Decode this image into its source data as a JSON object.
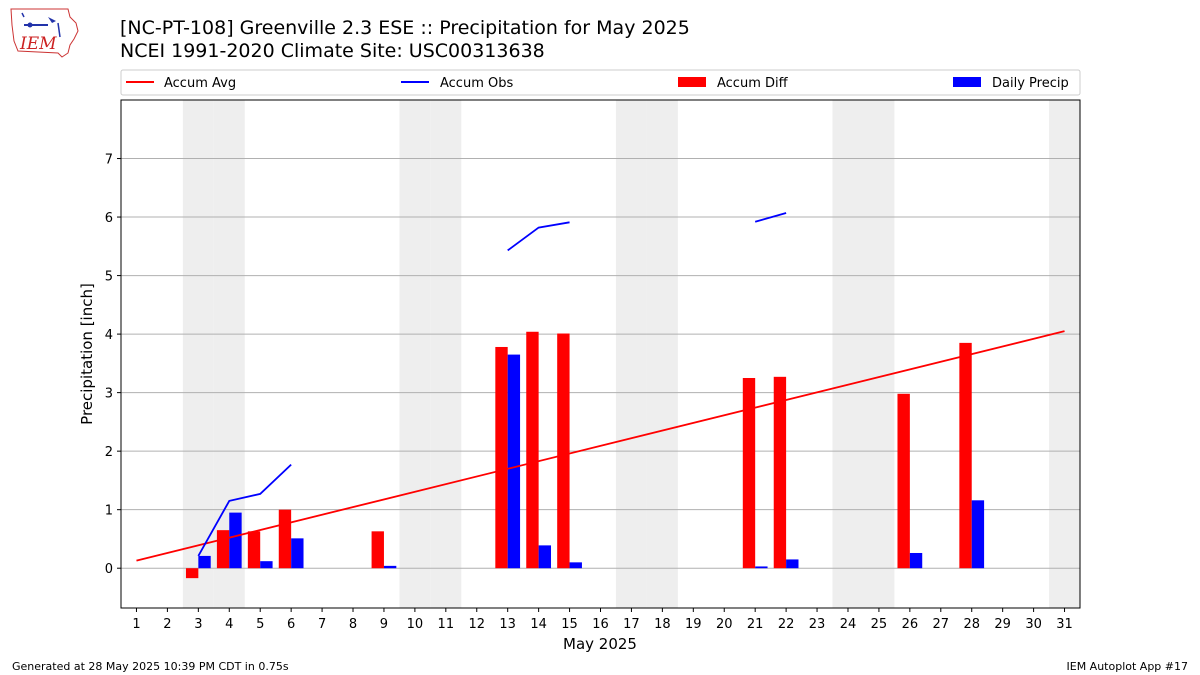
{
  "title_line1": "[NC-PT-108] Greenville 2.3 ESE :: Precipitation for May 2025",
  "title_line2": "NCEI 1991-2020 Climate Site: USC00313638",
  "footer_left": "Generated at 28 May 2025 10:39 PM CDT in 0.75s",
  "footer_right": "IEM Autoplot App #17",
  "logo_text": "IEM",
  "colors": {
    "accum_avg": "#ff0000",
    "accum_obs": "#0000ff",
    "accum_diff": "#ff0000",
    "daily_precip": "#0000ff",
    "weekend_shade": "#eeeeee",
    "grid": "#b0b0b0",
    "zero_line": "#b0b0b0"
  },
  "chart_data": {
    "type": "bar",
    "xlabel": "May 2025",
    "ylabel": "Precipitation [inch]",
    "xlim": [
      0.5,
      31.5
    ],
    "ylim": [
      -0.68,
      8.0
    ],
    "x_ticks": [
      1,
      2,
      3,
      4,
      5,
      6,
      7,
      8,
      9,
      10,
      11,
      12,
      13,
      14,
      15,
      16,
      17,
      18,
      19,
      20,
      21,
      22,
      23,
      24,
      25,
      26,
      27,
      28,
      29,
      30,
      31
    ],
    "y_ticks": [
      0,
      1,
      2,
      3,
      4,
      5,
      6,
      7
    ],
    "grid": "horizontal",
    "legend_position": "top",
    "legend": [
      "Accum Avg",
      "Accum Obs",
      "Accum Diff",
      "Daily Precip"
    ],
    "weekend_days": [
      3,
      4,
      10,
      11,
      17,
      18,
      24,
      25,
      31
    ],
    "accum_avg": {
      "name": "Accum Avg",
      "x": [
        1,
        31
      ],
      "y": [
        0.13,
        4.05
      ]
    },
    "accum_obs": {
      "name": "Accum Obs",
      "segments": [
        {
          "x": [
            3,
            4,
            5,
            6
          ],
          "y": [
            0.21,
            1.15,
            1.27,
            1.77
          ]
        },
        {
          "x": [
            13,
            14,
            15
          ],
          "y": [
            5.43,
            5.82,
            5.91
          ]
        },
        {
          "x": [
            21,
            22
          ],
          "y": [
            5.92,
            6.07
          ]
        }
      ]
    },
    "accum_diff": {
      "name": "Accum Diff",
      "x": [
        3,
        4,
        5,
        6,
        9,
        13,
        14,
        15,
        21,
        22,
        26,
        28
      ],
      "y": [
        -0.17,
        0.65,
        0.63,
        1.0,
        0.63,
        3.78,
        4.04,
        4.01,
        3.25,
        3.27,
        2.98,
        3.85
      ]
    },
    "daily_precip": {
      "name": "Daily Precip",
      "x": [
        3,
        4,
        5,
        6,
        9,
        13,
        14,
        15,
        21,
        22,
        26,
        28
      ],
      "y": [
        0.21,
        0.95,
        0.12,
        0.51,
        0.04,
        3.65,
        0.39,
        0.1,
        0.03,
        0.15,
        0.26,
        1.16
      ]
    }
  }
}
